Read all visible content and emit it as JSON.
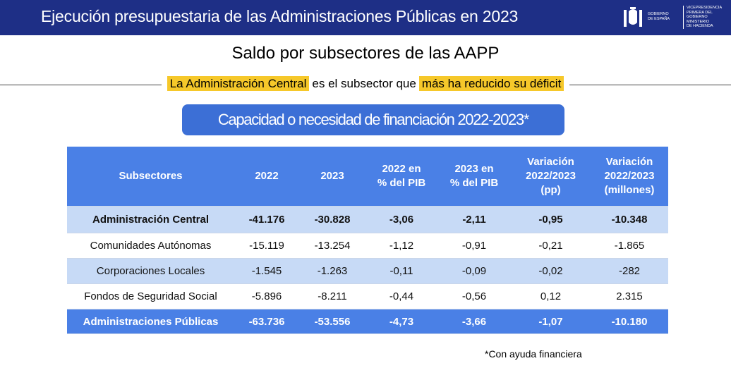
{
  "header": {
    "title": "Ejecución presupuestaria de las Administraciones Públicas en 2023",
    "logo_a": [
      "GOBIERNO",
      "DE ESPAÑA"
    ],
    "logo_b": [
      "VICEPRESIDENCIA",
      "PRIMERA DEL GOBIERNO",
      "MINISTERIO",
      "DE HACIENDA"
    ]
  },
  "subtitle": "Saldo por subsectores de las AAPP",
  "headline": [
    "La Administración Central",
    "es el subsector que",
    "más ha reducido su déficit"
  ],
  "caption": "Capacidad o necesidad de financiación 2022-2023*",
  "table": {
    "columns": [
      "Subsectores",
      "2022",
      "2023",
      "2022 en\n% del PIB",
      "2023 en\n% del PIB",
      "Variación\n2022/2023\n(pp)",
      "Variación\n2022/2023\n(millones)"
    ],
    "rows": [
      [
        "Administración Central",
        "-41.176",
        "-30.828",
        "-3,06",
        "-2,11",
        "-0,95",
        "-10.348"
      ],
      [
        "Comunidades Autónomas",
        "-15.119",
        "-13.254",
        "-1,12",
        "-0,91",
        "-0,21",
        "-1.865"
      ],
      [
        "Corporaciones Locales",
        "-1.545",
        "-1.263",
        "-0,11",
        "-0,09",
        "-0,02",
        "-282"
      ],
      [
        "Fondos de Seguridad Social",
        "-5.896",
        "-8.211",
        "-0,44",
        "-0,56",
        "0,12",
        "2.315"
      ],
      [
        "Administraciones Públicas",
        "-63.736",
        "-53.556",
        "-4,73",
        "-3,66",
        "-1,07",
        "-10.180"
      ]
    ]
  },
  "footnote": "*Con ayuda financiera"
}
